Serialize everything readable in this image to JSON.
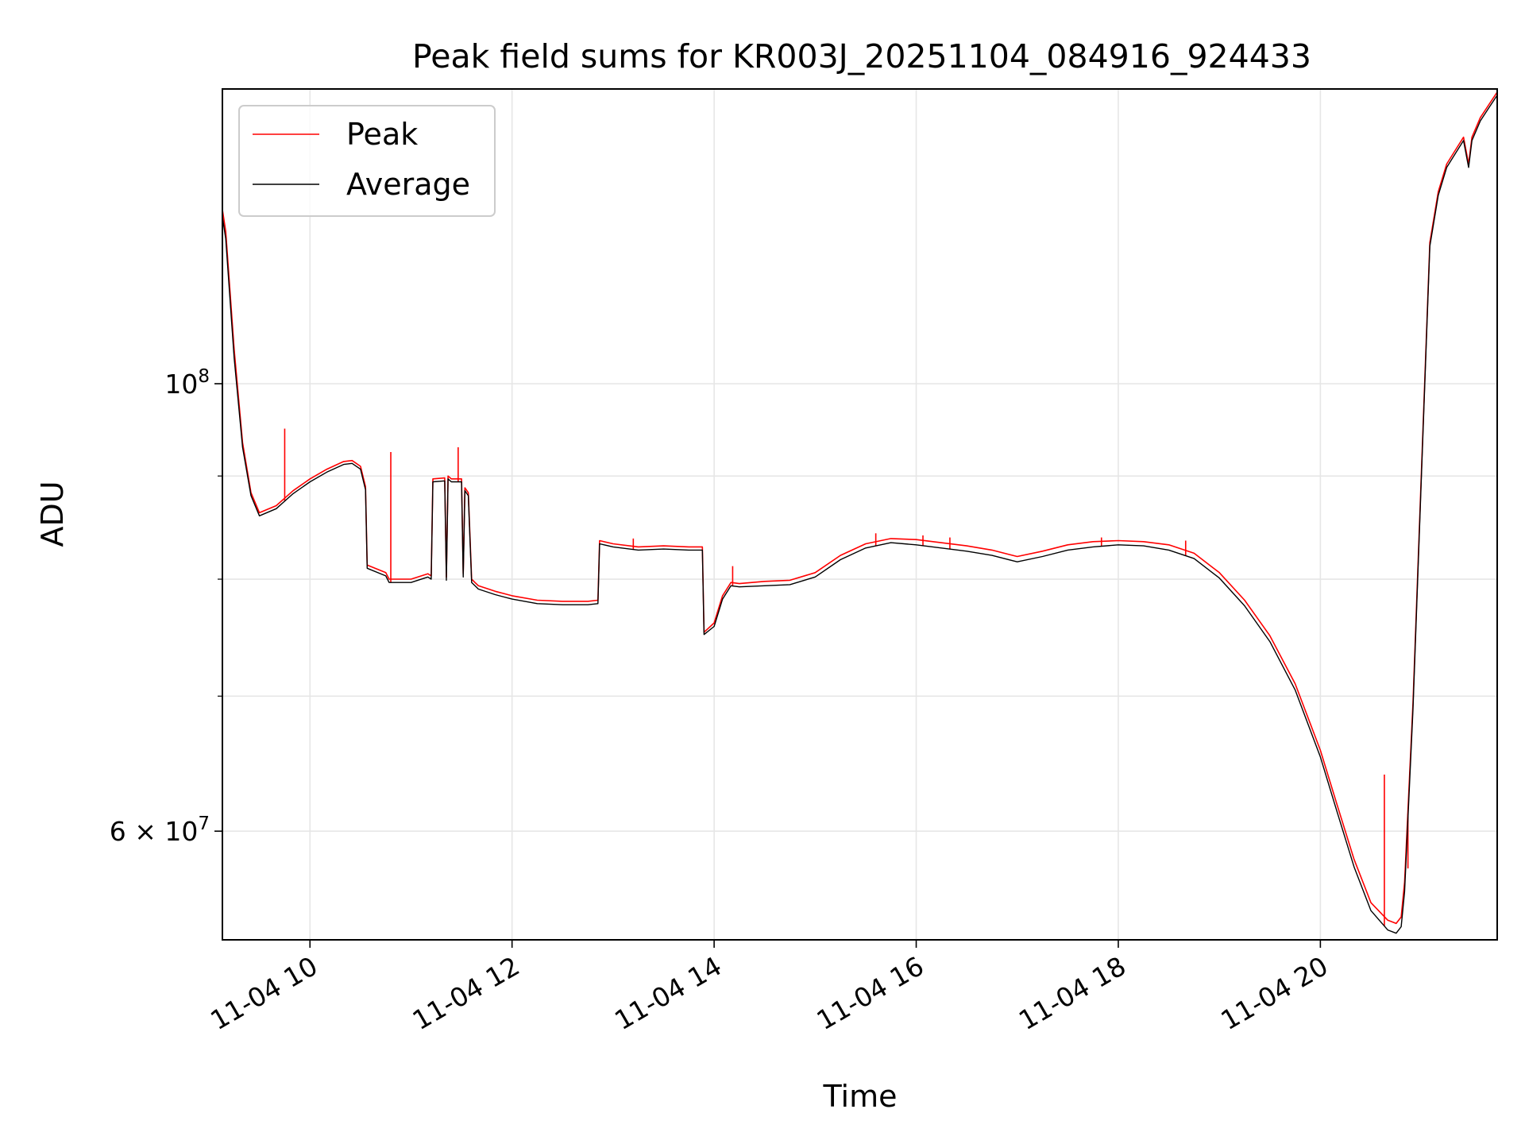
{
  "chart_data": {
    "type": "line",
    "title": "Peak field sums for KR003J_20251104_084916_924433",
    "xlabel": "Time",
    "ylabel": "ADU",
    "yscale": "log",
    "grid": true,
    "legend_position": "top-left",
    "x_range": [
      "2025-11-04 09:08",
      "2025-11-04 21:45"
    ],
    "ylim": [
      53000000,
      140000000
    ],
    "x_ticks": [
      {
        "value": "2025-11-04 10:00",
        "label": "11-04 10"
      },
      {
        "value": "2025-11-04 12:00",
        "label": "11-04 12"
      },
      {
        "value": "2025-11-04 14:00",
        "label": "11-04 14"
      },
      {
        "value": "2025-11-04 16:00",
        "label": "11-04 16"
      },
      {
        "value": "2025-11-04 18:00",
        "label": "11-04 18"
      },
      {
        "value": "2025-11-04 20:00",
        "label": "11-04 20"
      }
    ],
    "y_major_ticks": [
      {
        "value": 100000000,
        "label_base": "10",
        "label_exp": "8"
      },
      {
        "value": 60000000,
        "label_base": "6 × 10",
        "label_exp": "7"
      }
    ],
    "y_minor_ticks": [
      70000000,
      80000000,
      90000000
    ],
    "series": [
      {
        "name": "Peak",
        "color": "#ff0000"
      },
      {
        "name": "Average",
        "color": "#000000"
      }
    ],
    "x": [
      "09:08",
      "09:10",
      "09:15",
      "09:20",
      "09:25",
      "09:30",
      "09:40",
      "09:50",
      "10:00",
      "10:10",
      "10:20",
      "10:25",
      "10:30",
      "10:33",
      "10:34",
      "10:45",
      "10:47",
      "11:00",
      "11:10",
      "11:12",
      "11:13",
      "11:20",
      "11:21",
      "11:22",
      "11:24",
      "11:30",
      "11:31",
      "11:32",
      "11:34",
      "11:36",
      "11:38",
      "11:40",
      "11:50",
      "12:00",
      "12:15",
      "12:30",
      "12:45",
      "12:51",
      "12:52",
      "13:00",
      "13:15",
      "13:30",
      "13:45",
      "13:53",
      "13:54",
      "14:00",
      "14:05",
      "14:10",
      "14:15",
      "14:30",
      "14:45",
      "15:00",
      "15:15",
      "15:30",
      "15:45",
      "16:00",
      "16:30",
      "16:45",
      "17:00",
      "17:15",
      "17:30",
      "17:45",
      "18:00",
      "18:15",
      "18:30",
      "18:45",
      "19:00",
      "19:15",
      "19:30",
      "19:45",
      "20:00",
      "20:10",
      "20:20",
      "20:30",
      "20:40",
      "20:45",
      "20:48",
      "20:50",
      "20:55",
      "21:00",
      "21:05",
      "21:10",
      "21:15",
      "21:20",
      "21:25",
      "21:28",
      "21:30",
      "21:35",
      "21:40",
      "21:45"
    ],
    "average": [
      121000000,
      118000000,
      103000000,
      93000000,
      88000000,
      86000000,
      86700000,
      88200000,
      89400000,
      90400000,
      91200000,
      91300000,
      90700000,
      88600000,
      81000000,
      80300000,
      79700000,
      79700000,
      80200000,
      80000000,
      89400000,
      89500000,
      79900000,
      89700000,
      89400000,
      89400000,
      80200000,
      88500000,
      88000000,
      79700000,
      79400000,
      79100000,
      78600000,
      78200000,
      77800000,
      77700000,
      77700000,
      77800000,
      83300000,
      83000000,
      82700000,
      82800000,
      82700000,
      82700000,
      75100000,
      75800000,
      78200000,
      79400000,
      79300000,
      79400000,
      79500000,
      80200000,
      81800000,
      82900000,
      83400000,
      83200000,
      82600000,
      82200000,
      81600000,
      82100000,
      82700000,
      83000000,
      83200000,
      83100000,
      82700000,
      81900000,
      80100000,
      77600000,
      74500000,
      70500000,
      65300000,
      61300000,
      57600000,
      54800000,
      53600000,
      53400000,
      53800000,
      56000000,
      69000000,
      90000000,
      117000000,
      124000000,
      128000000,
      130000000,
      132000000,
      128000000,
      132000000,
      135000000,
      137000000,
      139000000
    ],
    "peak": [
      122000000,
      119000000,
      104000000,
      93500000,
      88300000,
      86300000,
      87000000,
      88500000,
      89700000,
      90700000,
      91500000,
      91600000,
      91000000,
      88900000,
      81300000,
      80600000,
      80000000,
      80000000,
      80500000,
      80300000,
      89700000,
      89800000,
      80200000,
      90000000,
      89700000,
      89700000,
      80500000,
      88800000,
      88300000,
      80000000,
      79700000,
      79400000,
      78900000,
      78500000,
      78100000,
      78000000,
      78000000,
      78100000,
      83600000,
      83300000,
      83000000,
      83100000,
      83000000,
      83000000,
      75300000,
      76100000,
      78500000,
      79700000,
      79600000,
      79800000,
      79900000,
      80600000,
      82200000,
      83300000,
      83800000,
      83700000,
      83100000,
      82700000,
      82100000,
      82600000,
      83200000,
      83500000,
      83600000,
      83500000,
      83200000,
      82400000,
      80600000,
      78100000,
      75000000,
      71000000,
      65800000,
      61800000,
      58100000,
      55300000,
      54200000,
      54000000,
      54400000,
      56600000,
      69500000,
      90500000,
      117500000,
      124500000,
      128500000,
      130500000,
      132500000,
      128500000,
      132500000,
      135500000,
      137500000,
      139500000
    ],
    "peak_spikes": [
      {
        "x": "09:45",
        "y": 95000000
      },
      {
        "x": "10:48",
        "y": 92500000
      },
      {
        "x": "11:28",
        "y": 93000000
      },
      {
        "x": "13:12",
        "y": 83800000
      },
      {
        "x": "14:11",
        "y": 81200000
      },
      {
        "x": "15:36",
        "y": 84300000
      },
      {
        "x": "16:04",
        "y": 84100000
      },
      {
        "x": "16:20",
        "y": 83900000
      },
      {
        "x": "17:50",
        "y": 83900000
      },
      {
        "x": "18:40",
        "y": 83600000
      },
      {
        "x": "20:38",
        "y": 64000000
      },
      {
        "x": "20:52",
        "y": 57500000
      }
    ]
  }
}
